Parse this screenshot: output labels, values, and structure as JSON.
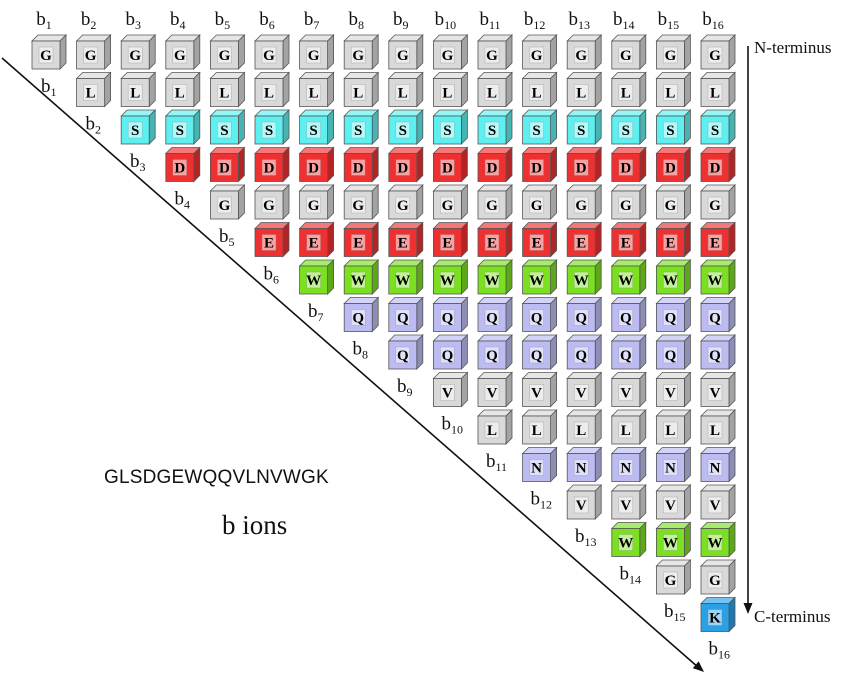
{
  "sequence": "GLSDGEWQQVLNVWGK",
  "ion_type_label": "b ions",
  "ion_prefix": "b",
  "terminus": {
    "n_label": "N-terminus",
    "c_label": "C-terminus"
  },
  "fragments": [
    "1",
    "2",
    "3",
    "4",
    "5",
    "6",
    "7",
    "8",
    "9",
    "10",
    "11",
    "12",
    "13",
    "14",
    "15",
    "16"
  ],
  "residue_colors": {
    "G": "#d9d9d9",
    "L": "#d9d9d9",
    "S": "#5ef0f0",
    "D": "#ee3030",
    "E": "#ee3030",
    "W": "#7ae020",
    "Q": "#bcbcf2",
    "N": "#bcbcf2",
    "V": "#d9d9d9",
    "K": "#2aa0e6"
  }
}
